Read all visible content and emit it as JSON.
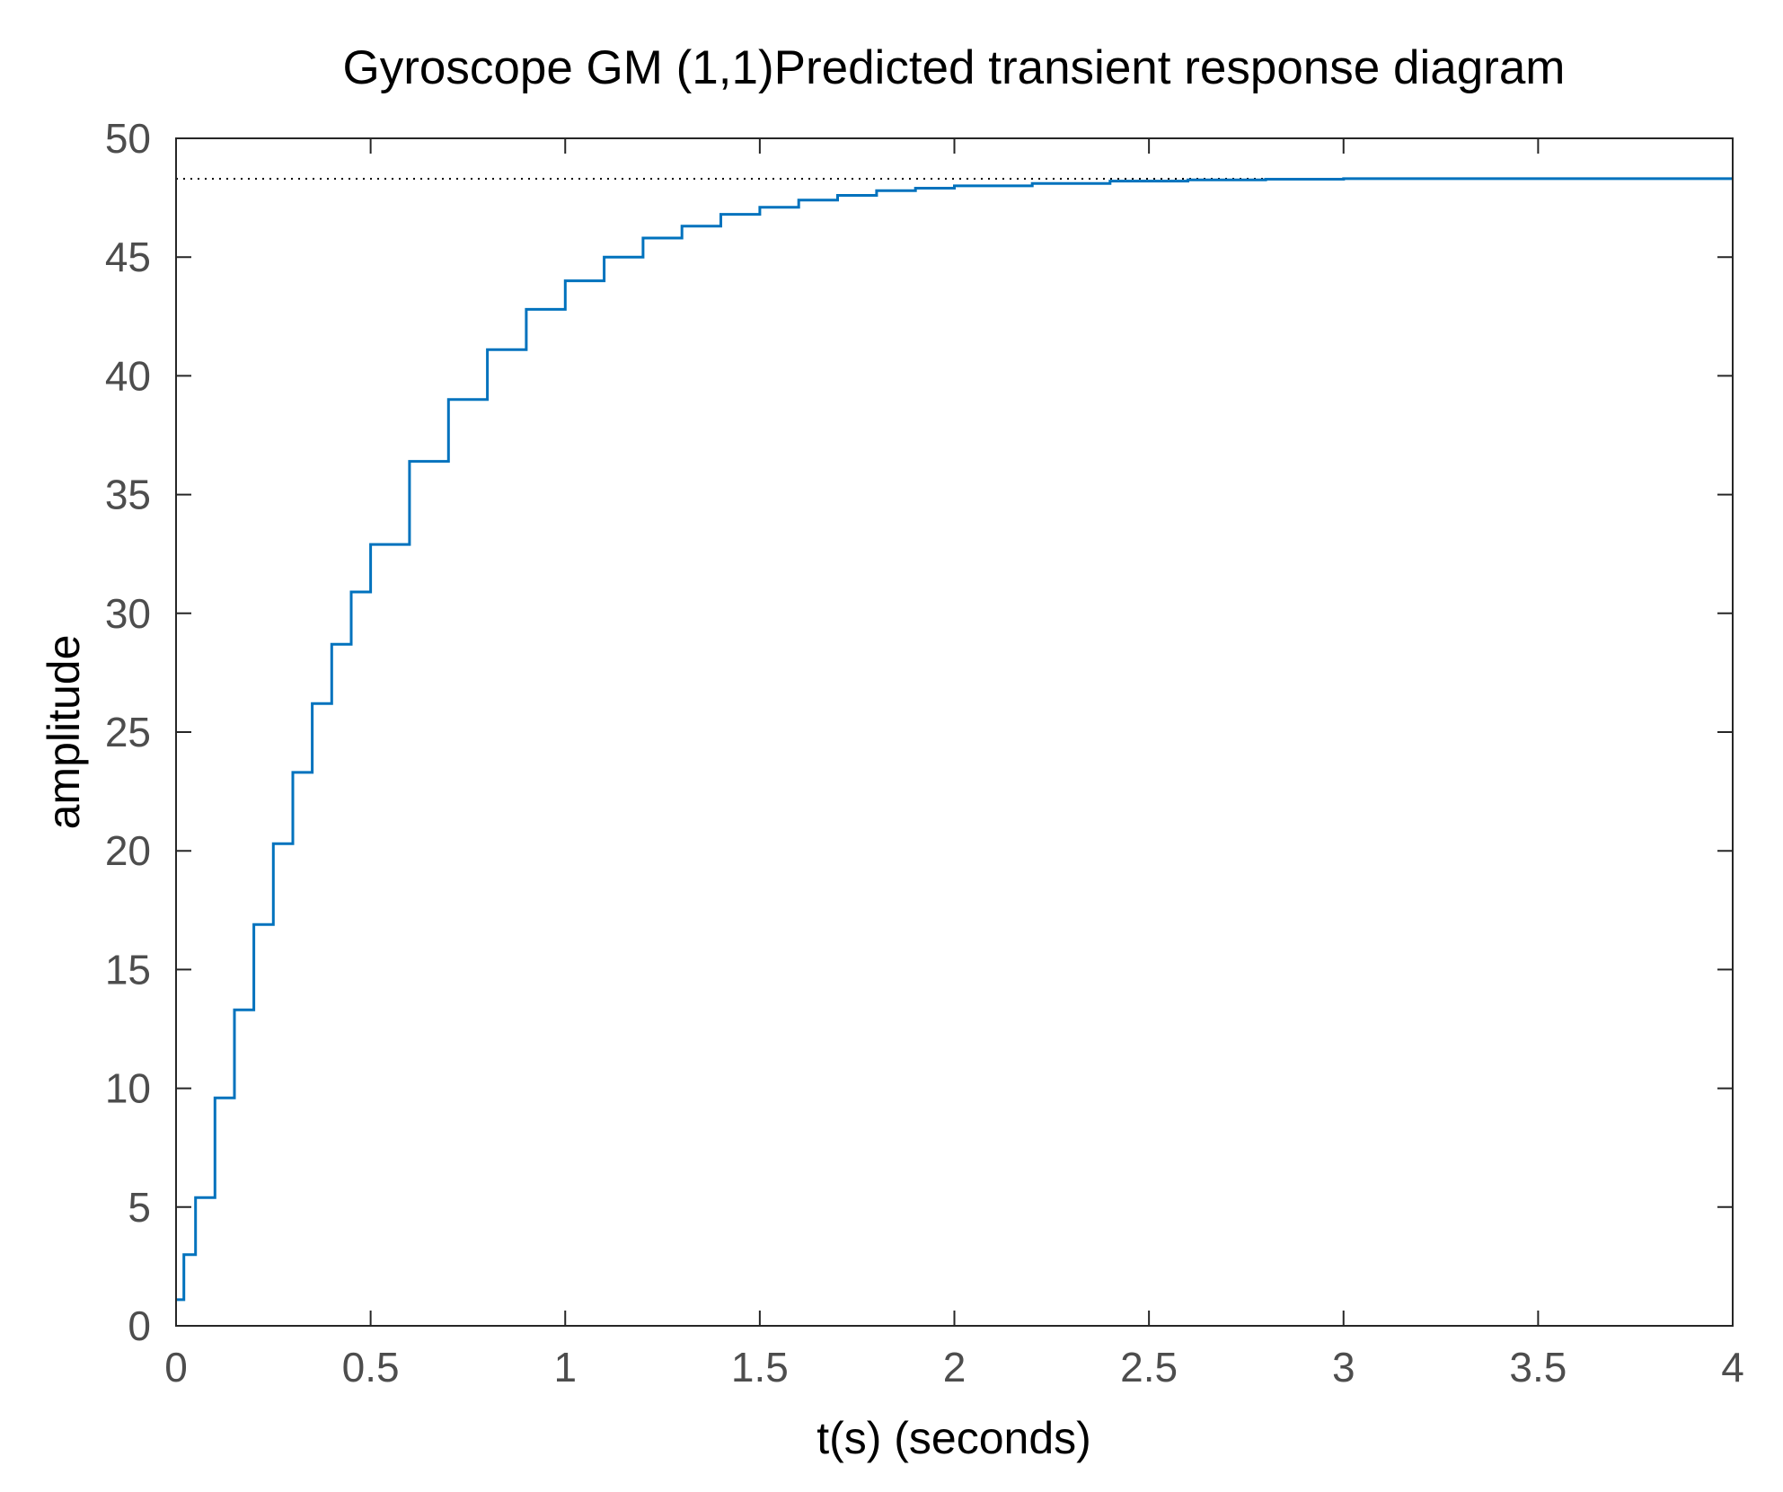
{
  "chart_data": {
    "type": "line",
    "title": "Gyroscope GM (1,1)Predicted transient response diagram",
    "xlabel": "t(s) (seconds)",
    "ylabel": "amplitude",
    "xlim": [
      0,
      4
    ],
    "ylim": [
      0,
      50
    ],
    "xticks": [
      0,
      0.5,
      1,
      1.5,
      2,
      2.5,
      3,
      3.5,
      4
    ],
    "xtick_labels": [
      "0",
      "0.5",
      "1",
      "1.5",
      "2",
      "2.5",
      "3",
      "3.5",
      "4"
    ],
    "yticks": [
      0,
      5,
      10,
      15,
      20,
      25,
      30,
      35,
      40,
      45,
      50
    ],
    "ytick_labels": [
      "0",
      "5",
      "10",
      "15",
      "20",
      "25",
      "30",
      "35",
      "40",
      "45",
      "50"
    ],
    "grid": false,
    "legend": "none",
    "steady_state": {
      "value": 48.3,
      "style": "dotted",
      "color": "#000000"
    },
    "series": [
      {
        "style": "stairs",
        "color": "#0072BD",
        "x": [
          0,
          0.02,
          0.05,
          0.1,
          0.15,
          0.2,
          0.25,
          0.3,
          0.35,
          0.4,
          0.45,
          0.5,
          0.6,
          0.7,
          0.8,
          0.9,
          1.0,
          1.1,
          1.2,
          1.3,
          1.4,
          1.5,
          1.6,
          1.7,
          1.8,
          1.9,
          2.0,
          2.2,
          2.4,
          2.6,
          2.8,
          3.0,
          3.2,
          3.5,
          4.0
        ],
        "y": [
          1.1,
          3.0,
          5.4,
          9.6,
          13.3,
          16.9,
          20.3,
          23.3,
          26.2,
          28.7,
          30.9,
          32.9,
          36.4,
          39.0,
          41.1,
          42.8,
          44.0,
          45.0,
          45.8,
          46.3,
          46.8,
          47.1,
          47.4,
          47.6,
          47.8,
          47.9,
          48.0,
          48.1,
          48.2,
          48.25,
          48.28,
          48.3,
          48.3,
          48.3,
          48.3
        ]
      }
    ]
  }
}
